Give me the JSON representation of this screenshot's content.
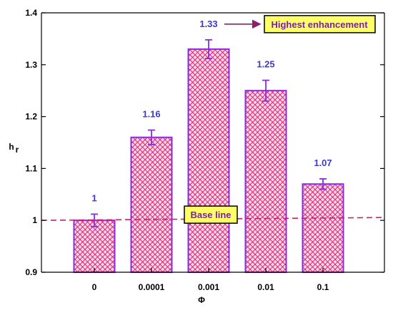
{
  "chart_data": {
    "type": "bar",
    "categories": [
      "0",
      "0.0001",
      "0.001",
      "0.01",
      "0.1"
    ],
    "values": [
      1.0,
      1.16,
      1.33,
      1.25,
      1.07
    ],
    "errors": [
      0.012,
      0.014,
      0.018,
      0.02,
      0.01
    ],
    "value_labels": [
      "1",
      "1.16",
      "1.33",
      "1.25",
      "1.07"
    ],
    "xlabel": "Φ",
    "ylabel": "h",
    "ylabel_subscript": "r",
    "ylim": [
      0.9,
      1.4
    ],
    "yticks": [
      0.9,
      1.0,
      1.1,
      1.2,
      1.3,
      1.4
    ],
    "ytick_labels": [
      "0.9",
      "1",
      "1.1",
      "1.2",
      "1.3",
      "1.4"
    ],
    "baseline": {
      "value": 1.0,
      "label": "Base line"
    },
    "highlight": {
      "label": "Highest enhancement",
      "category_index": 2
    },
    "grid": false,
    "colors": {
      "bar_fill": "#ffd6e6",
      "bar_hatch": "#d4146a",
      "bar_stroke": "#8a2be2",
      "baseline": "#c8206a",
      "value_label": "#3b3bd0",
      "annotation_bg": "#ffff66",
      "annotation_text": "#7a1fa8",
      "arrow": "#8b1f6b"
    }
  }
}
